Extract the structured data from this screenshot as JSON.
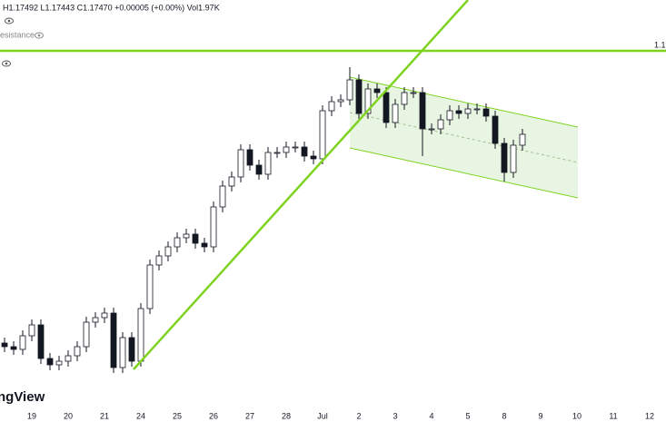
{
  "chart_data": {
    "type": "candlestick",
    "header": "H1.17492 L1.17443 C1.17470 +0.00005 (+0.00%) Vol1.97K",
    "drawing_label": "esistance",
    "price_label": "1.1",
    "watermark": "ngView",
    "up_color": "#ffffff",
    "down_color": "#131722",
    "line_color": "#7ed321",
    "channel_fill": "#e3f2dc",
    "x": [
      -0.75,
      -0.5,
      -0.25,
      0,
      0.25,
      0.5,
      0.75,
      1,
      1.25,
      1.5,
      1.75,
      2,
      2.25,
      2.5,
      2.75,
      3,
      3.25,
      3.5,
      3.75,
      4,
      4.25,
      4.5,
      4.75,
      5,
      5.25,
      5.5,
      5.75,
      6,
      6.25,
      6.5,
      6.75,
      7,
      7.25,
      7.5,
      7.75,
      8,
      8.25,
      8.5,
      8.75,
      9,
      9.25,
      9.5,
      9.75,
      10,
      10.25,
      10.5,
      10.75,
      11,
      11.25,
      11.5,
      11.75,
      12,
      12.25,
      12.5,
      12.75,
      13,
      13.25,
      13.5
    ],
    "open": [
      1.1611,
      1.1609,
      1.16075,
      1.1615,
      1.1621,
      1.16025,
      1.1599,
      1.1601,
      1.1604,
      1.1609,
      1.16225,
      1.1625,
      1.16275,
      1.15975,
      1.1614,
      1.1601,
      1.163,
      1.1654,
      1.1659,
      1.1664,
      1.1669,
      1.1671,
      1.1666,
      1.1664,
      1.1686,
      1.16975,
      1.17025,
      1.17175,
      1.1709,
      1.1704,
      1.1716,
      1.1716,
      1.1719,
      1.1719,
      1.1714,
      1.17125,
      1.1739,
      1.1744,
      1.1745,
      1.1756,
      1.17375,
      1.1751,
      1.1749,
      1.17325,
      1.17425,
      1.1749,
      1.1749,
      1.1729,
      1.1729,
      1.1734,
      1.1739,
      1.17375,
      1.174,
      1.174,
      1.1736,
      1.1721,
      1.1705,
      1.172
    ],
    "high": [
      1.1614,
      1.1612,
      1.1618,
      1.1624,
      1.1624,
      1.16055,
      1.1604,
      1.1607,
      1.1612,
      1.16255,
      1.1628,
      1.16305,
      1.16305,
      1.1617,
      1.1617,
      1.1633,
      1.1657,
      1.1662,
      1.1667,
      1.1672,
      1.1674,
      1.1674,
      1.1669,
      1.1689,
      1.17005,
      1.17055,
      1.17205,
      1.17205,
      1.1712,
      1.1719,
      1.1719,
      1.1722,
      1.1722,
      1.1722,
      1.1717,
      1.1742,
      1.1747,
      1.1748,
      1.1763,
      1.1759,
      1.1754,
      1.1754,
      1.1752,
      1.17455,
      1.1752,
      1.1752,
      1.1752,
      1.1732,
      1.1737,
      1.1742,
      1.1742,
      1.1743,
      1.1743,
      1.1743,
      1.1739,
      1.1724,
      1.1723,
      1.1729
    ],
    "low": [
      1.1606,
      1.16045,
      1.16045,
      1.1612,
      1.15995,
      1.1596,
      1.1596,
      1.1598,
      1.1601,
      1.1606,
      1.16195,
      1.1622,
      1.15945,
      1.15945,
      1.1598,
      1.1598,
      1.1627,
      1.1651,
      1.1656,
      1.1661,
      1.1666,
      1.1663,
      1.1661,
      1.1661,
      1.1683,
      1.16945,
      1.16995,
      1.1706,
      1.1701,
      1.1701,
      1.1713,
      1.1713,
      1.1716,
      1.1711,
      1.17095,
      1.17095,
      1.1736,
      1.1741,
      1.1742,
      1.17345,
      1.17345,
      1.1746,
      1.17295,
      1.17295,
      1.17395,
      1.1746,
      1.1714,
      1.1726,
      1.1726,
      1.1731,
      1.17345,
      1.17345,
      1.1737,
      1.1733,
      1.1718,
      1.17,
      1.1702,
      1.1717
    ],
    "close": [
      1.1609,
      1.16075,
      1.1615,
      1.1621,
      1.16025,
      1.1599,
      1.1601,
      1.1604,
      1.1609,
      1.16225,
      1.1625,
      1.16275,
      1.15975,
      1.1614,
      1.1601,
      1.163,
      1.1654,
      1.1659,
      1.1664,
      1.1669,
      1.1671,
      1.1666,
      1.1664,
      1.1686,
      1.16975,
      1.17025,
      1.17175,
      1.1709,
      1.1704,
      1.1716,
      1.1716,
      1.1719,
      1.1719,
      1.1714,
      1.17125,
      1.1739,
      1.1744,
      1.1745,
      1.1756,
      1.17375,
      1.1751,
      1.1749,
      1.17325,
      1.17425,
      1.1749,
      1.1749,
      1.1729,
      1.1729,
      1.1734,
      1.1739,
      1.17375,
      1.174,
      1.174,
      1.1736,
      1.1721,
      1.1705,
      1.172,
      1.1726
    ],
    "xlim": [
      -0.875,
      17.45
    ],
    "ylim": [
      1.158,
      1.18
    ],
    "xticks": [
      {
        "value": 0,
        "label": "19"
      },
      {
        "value": 1,
        "label": "20"
      },
      {
        "value": 2,
        "label": "21"
      },
      {
        "value": 3,
        "label": "24"
      },
      {
        "value": 4,
        "label": "25"
      },
      {
        "value": 5,
        "label": "26"
      },
      {
        "value": 6,
        "label": "27"
      },
      {
        "value": 7,
        "label": "28"
      },
      {
        "value": 8,
        "label": "Jul"
      },
      {
        "value": 9,
        "label": "2"
      },
      {
        "value": 10,
        "label": "3"
      },
      {
        "value": 11,
        "label": "4"
      },
      {
        "value": 12,
        "label": "5"
      },
      {
        "value": 13,
        "label": "8"
      },
      {
        "value": 14,
        "label": "9"
      },
      {
        "value": 15,
        "label": "10"
      },
      {
        "value": 16,
        "label": "11"
      },
      {
        "value": 17,
        "label": "12"
      }
    ],
    "trendline": {
      "x": [
        2.8,
        12.0
      ],
      "y": [
        1.15965,
        1.18
      ]
    },
    "resistance": 1.1772,
    "channel": {
      "x": [
        8.75,
        15.025
      ],
      "upper": [
        1.17575,
        1.173
      ],
      "lower": [
        1.17185,
        1.1691
      ]
    }
  }
}
